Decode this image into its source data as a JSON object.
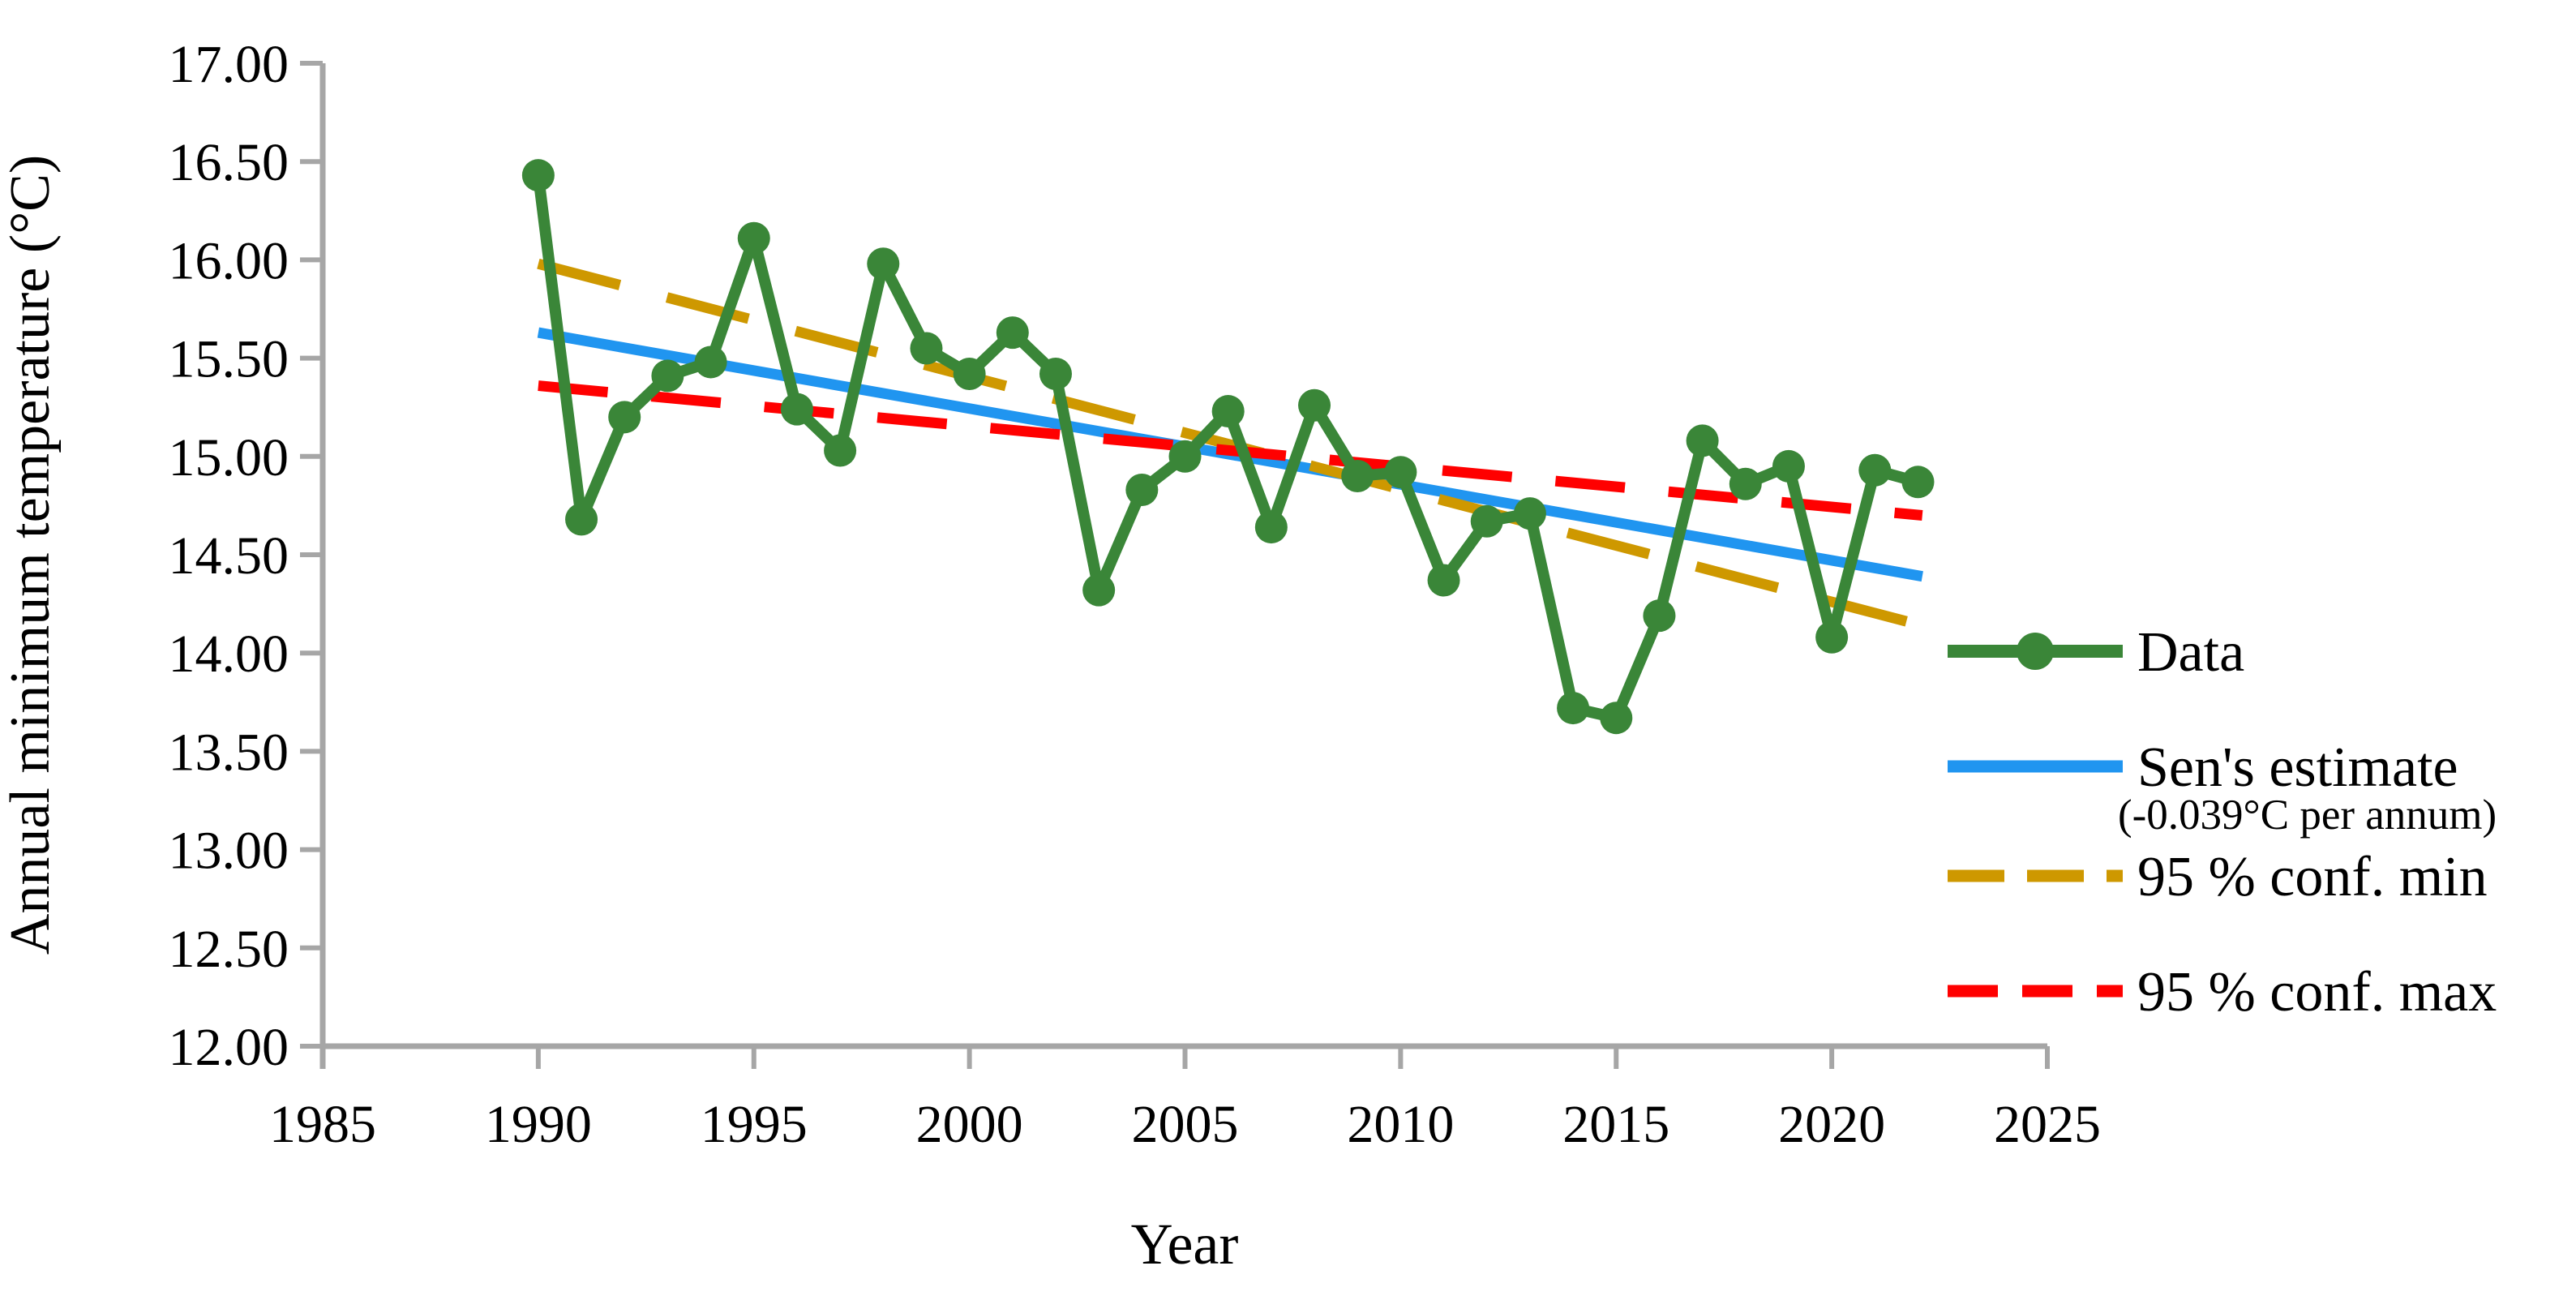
{
  "page": {
    "background": "#FFFFFF"
  },
  "chart_data": {
    "type": "line",
    "title": "",
    "xlabel": "Year",
    "ylabel": "Annual minimum temperature (°C)",
    "xlim": [
      1985,
      2025
    ],
    "ylim": [
      12.0,
      17.0
    ],
    "grid": false,
    "legend_position": "right",
    "axis_color": "#A6A6A6",
    "x_ticks": [
      1985,
      1990,
      1995,
      2000,
      2005,
      2010,
      2015,
      2020,
      2025
    ],
    "y_ticks": [
      "17.00",
      "16.50",
      "16.00",
      "15.50",
      "15.00",
      "14.50",
      "14.00",
      "13.50",
      "13.00",
      "12.50",
      "12.00"
    ],
    "series": [
      {
        "id": "data",
        "name": "Data",
        "type": "line_markers",
        "color": "#3A8638",
        "x": [
          1990,
          1991,
          1992,
          1993,
          1994,
          1995,
          1996,
          1997,
          1998,
          1999,
          2000,
          2001,
          2002,
          2003,
          2004,
          2005,
          2006,
          2007,
          2008,
          2009,
          2010,
          2011,
          2012,
          2013,
          2014,
          2015,
          2016,
          2017,
          2018,
          2019,
          2020,
          2021,
          2022
        ],
        "values": [
          16.43,
          14.68,
          15.2,
          15.41,
          15.48,
          16.11,
          15.24,
          15.03,
          15.98,
          15.55,
          15.42,
          15.63,
          15.42,
          14.32,
          14.83,
          15.0,
          15.23,
          14.64,
          15.26,
          14.9,
          14.92,
          14.37,
          14.67,
          14.71,
          13.72,
          13.67,
          14.19,
          15.08,
          14.86,
          14.95,
          14.08,
          14.93,
          14.87
        ]
      },
      {
        "id": "sen",
        "name": "Sen's estimate",
        "annotation": "(-0.039°C per annum)",
        "type": "line",
        "color": "#2095F0",
        "x": [
          1990,
          2022.1
        ],
        "values": [
          15.63,
          14.39
        ]
      },
      {
        "id": "conf_min",
        "name": "95 % conf. min",
        "type": "dashed_line",
        "color": "#CE9800",
        "x": [
          1990,
          2022.1
        ],
        "values": [
          15.98,
          14.14
        ]
      },
      {
        "id": "conf_max",
        "name": "95 % conf. max",
        "type": "dashed_line",
        "color": "#FF0000",
        "x": [
          1990,
          2022.1
        ],
        "values": [
          15.36,
          14.7
        ]
      }
    ]
  }
}
